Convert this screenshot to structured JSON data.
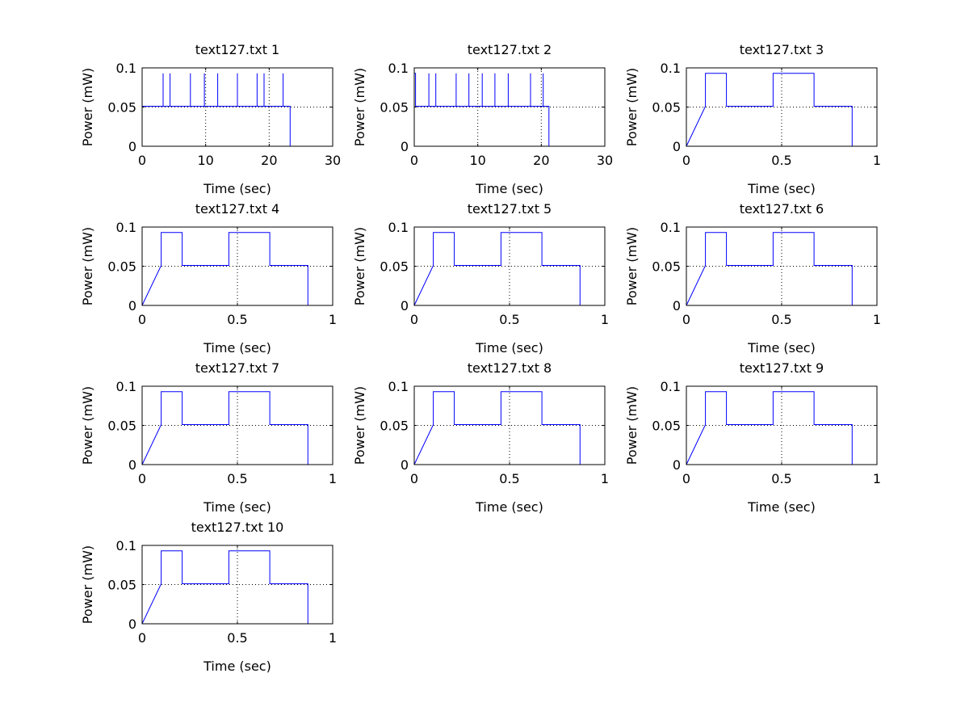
{
  "figure": {
    "background": "#ffffff"
  },
  "style": {
    "line_color": "#0000ff",
    "axis_color": "#000000",
    "grid_color": "#000000"
  },
  "chart_data": [
    {
      "type": "line",
      "title": "text127.txt 1",
      "xlabel": "Time (sec)",
      "ylabel": "Power (mW)",
      "xlim": [
        0,
        30
      ],
      "ylim": [
        0,
        0.1
      ],
      "xticks": [
        0,
        10,
        20,
        30
      ],
      "xticklabels": [
        "0",
        "10",
        "20",
        "30"
      ],
      "yticks": [
        0,
        0.05,
        0.1
      ],
      "yticklabels": [
        "0",
        "0.05",
        "0.1"
      ],
      "grid": true,
      "series": [
        {
          "x": [
            0,
            0,
            0,
            3.3,
            3.3,
            3.3,
            4.4,
            4.4,
            4.4,
            7.6,
            7.6,
            7.6,
            9.8,
            9.8,
            9.8,
            11.9,
            11.9,
            11.9,
            15.0,
            15.0,
            15.0,
            18.1,
            18.1,
            18.1,
            19.2,
            19.2,
            19.2,
            22.2,
            22.2,
            22.2,
            23.3,
            23.3
          ],
          "y": [
            0,
            0.093,
            0.051,
            0.051,
            0.093,
            0.051,
            0.051,
            0.093,
            0.051,
            0.051,
            0.093,
            0.051,
            0.051,
            0.093,
            0.051,
            0.051,
            0.093,
            0.051,
            0.051,
            0.093,
            0.051,
            0.051,
            0.093,
            0.051,
            0.051,
            0.093,
            0.051,
            0.051,
            0.093,
            0.051,
            0.051,
            0
          ]
        }
      ]
    },
    {
      "type": "line",
      "title": "text127.txt 2",
      "xlabel": "Time (sec)",
      "ylabel": "Power (mW)",
      "xlim": [
        0,
        30
      ],
      "ylim": [
        0,
        0.1
      ],
      "xticks": [
        0,
        10,
        20,
        30
      ],
      "xticklabels": [
        "0",
        "10",
        "20",
        "30"
      ],
      "yticks": [
        0,
        0.05,
        0.1
      ],
      "yticklabels": [
        "0",
        "0.05",
        "0.1"
      ],
      "grid": true,
      "series": [
        {
          "x": [
            0,
            0,
            0.2,
            0.2,
            2.3,
            2.3,
            2.3,
            3.4,
            3.4,
            3.4,
            6.6,
            6.6,
            6.6,
            8.6,
            8.6,
            8.6,
            10.7,
            10.7,
            10.7,
            12.7,
            12.7,
            12.7,
            14.8,
            14.8,
            14.8,
            18.3,
            18.3,
            18.3,
            20.3,
            20.3,
            20.3,
            21.2,
            21.2
          ],
          "y": [
            0,
            0.093,
            0.093,
            0.051,
            0.051,
            0.093,
            0.051,
            0.051,
            0.093,
            0.051,
            0.051,
            0.093,
            0.051,
            0.051,
            0.093,
            0.051,
            0.051,
            0.093,
            0.051,
            0.051,
            0.093,
            0.051,
            0.051,
            0.093,
            0.051,
            0.051,
            0.093,
            0.051,
            0.051,
            0.093,
            0.051,
            0.051,
            0
          ]
        }
      ]
    },
    {
      "type": "line",
      "title": "text127.txt 3",
      "xlabel": "Time (sec)",
      "ylabel": "Power (mW)",
      "xlim": [
        0,
        1
      ],
      "ylim": [
        0,
        0.1
      ],
      "xticks": [
        0,
        0.5,
        1
      ],
      "xticklabels": [
        "0",
        "0.5",
        "1"
      ],
      "yticks": [
        0,
        0.05,
        0.1
      ],
      "yticklabels": [
        "0",
        "0.05",
        "0.1"
      ],
      "grid": true,
      "series": [
        {
          "x": [
            0,
            0.1,
            0.1,
            0.21,
            0.21,
            0.455,
            0.455,
            0.67,
            0.67,
            0.87,
            0.87
          ],
          "y": [
            0,
            0.051,
            0.093,
            0.093,
            0.051,
            0.051,
            0.093,
            0.093,
            0.051,
            0.051,
            0
          ]
        }
      ]
    },
    {
      "type": "line",
      "title": "text127.txt 4",
      "xlabel": "Time (sec)",
      "ylabel": "Power (mW)",
      "xlim": [
        0,
        1
      ],
      "ylim": [
        0,
        0.1
      ],
      "xticks": [
        0,
        0.5,
        1
      ],
      "xticklabels": [
        "0",
        "0.5",
        "1"
      ],
      "yticks": [
        0,
        0.05,
        0.1
      ],
      "yticklabels": [
        "0",
        "0.05",
        "0.1"
      ],
      "grid": true,
      "series": [
        {
          "x": [
            0,
            0.1,
            0.1,
            0.21,
            0.21,
            0.455,
            0.455,
            0.67,
            0.67,
            0.87,
            0.87
          ],
          "y": [
            0,
            0.051,
            0.093,
            0.093,
            0.051,
            0.051,
            0.093,
            0.093,
            0.051,
            0.051,
            0
          ]
        }
      ]
    },
    {
      "type": "line",
      "title": "text127.txt 5",
      "xlabel": "Time (sec)",
      "ylabel": "Power (mW)",
      "xlim": [
        0,
        1
      ],
      "ylim": [
        0,
        0.1
      ],
      "xticks": [
        0,
        0.5,
        1
      ],
      "xticklabels": [
        "0",
        "0.5",
        "1"
      ],
      "yticks": [
        0,
        0.05,
        0.1
      ],
      "yticklabels": [
        "0",
        "0.05",
        "0.1"
      ],
      "grid": true,
      "series": [
        {
          "x": [
            0,
            0.1,
            0.1,
            0.21,
            0.21,
            0.455,
            0.455,
            0.67,
            0.67,
            0.87,
            0.87
          ],
          "y": [
            0,
            0.051,
            0.093,
            0.093,
            0.051,
            0.051,
            0.093,
            0.093,
            0.051,
            0.051,
            0
          ]
        }
      ]
    },
    {
      "type": "line",
      "title": "text127.txt 6",
      "xlabel": "Time (sec)",
      "ylabel": "Power (mW)",
      "xlim": [
        0,
        1
      ],
      "ylim": [
        0,
        0.1
      ],
      "xticks": [
        0,
        0.5,
        1
      ],
      "xticklabels": [
        "0",
        "0.5",
        "1"
      ],
      "yticks": [
        0,
        0.05,
        0.1
      ],
      "yticklabels": [
        "0",
        "0.05",
        "0.1"
      ],
      "grid": true,
      "series": [
        {
          "x": [
            0,
            0.1,
            0.1,
            0.21,
            0.21,
            0.455,
            0.455,
            0.67,
            0.67,
            0.87,
            0.87
          ],
          "y": [
            0,
            0.051,
            0.093,
            0.093,
            0.051,
            0.051,
            0.093,
            0.093,
            0.051,
            0.051,
            0
          ]
        }
      ]
    },
    {
      "type": "line",
      "title": "text127.txt 7",
      "xlabel": "Time (sec)",
      "ylabel": "Power (mW)",
      "xlim": [
        0,
        1
      ],
      "ylim": [
        0,
        0.1
      ],
      "xticks": [
        0,
        0.5,
        1
      ],
      "xticklabels": [
        "0",
        "0.5",
        "1"
      ],
      "yticks": [
        0,
        0.05,
        0.1
      ],
      "yticklabels": [
        "0",
        "0.05",
        "0.1"
      ],
      "grid": true,
      "series": [
        {
          "x": [
            0,
            0.1,
            0.1,
            0.21,
            0.21,
            0.455,
            0.455,
            0.67,
            0.67,
            0.87,
            0.87
          ],
          "y": [
            0,
            0.051,
            0.093,
            0.093,
            0.051,
            0.051,
            0.093,
            0.093,
            0.051,
            0.051,
            0
          ]
        }
      ]
    },
    {
      "type": "line",
      "title": "text127.txt 8",
      "xlabel": "Time (sec)",
      "ylabel": "Power (mW)",
      "xlim": [
        0,
        1
      ],
      "ylim": [
        0,
        0.1
      ],
      "xticks": [
        0,
        0.5,
        1
      ],
      "xticklabels": [
        "0",
        "0.5",
        "1"
      ],
      "yticks": [
        0,
        0.05,
        0.1
      ],
      "yticklabels": [
        "0",
        "0.05",
        "0.1"
      ],
      "grid": true,
      "series": [
        {
          "x": [
            0,
            0.1,
            0.1,
            0.21,
            0.21,
            0.455,
            0.455,
            0.67,
            0.67,
            0.87,
            0.87
          ],
          "y": [
            0,
            0.051,
            0.093,
            0.093,
            0.051,
            0.051,
            0.093,
            0.093,
            0.051,
            0.051,
            0
          ]
        }
      ]
    },
    {
      "type": "line",
      "title": "text127.txt 9",
      "xlabel": "Time (sec)",
      "ylabel": "Power (mW)",
      "xlim": [
        0,
        1
      ],
      "ylim": [
        0,
        0.1
      ],
      "xticks": [
        0,
        0.5,
        1
      ],
      "xticklabels": [
        "0",
        "0.5",
        "1"
      ],
      "yticks": [
        0,
        0.05,
        0.1
      ],
      "yticklabels": [
        "0",
        "0.05",
        "0.1"
      ],
      "grid": true,
      "series": [
        {
          "x": [
            0,
            0.1,
            0.1,
            0.21,
            0.21,
            0.455,
            0.455,
            0.67,
            0.67,
            0.87,
            0.87
          ],
          "y": [
            0,
            0.051,
            0.093,
            0.093,
            0.051,
            0.051,
            0.093,
            0.093,
            0.051,
            0.051,
            0
          ]
        }
      ]
    },
    {
      "type": "line",
      "title": "text127.txt 10",
      "xlabel": "Time (sec)",
      "ylabel": "Power (mW)",
      "xlim": [
        0,
        1
      ],
      "ylim": [
        0,
        0.1
      ],
      "xticks": [
        0,
        0.5,
        1
      ],
      "xticklabels": [
        "0",
        "0.5",
        "1"
      ],
      "yticks": [
        0,
        0.05,
        0.1
      ],
      "yticklabels": [
        "0",
        "0.05",
        "0.1"
      ],
      "grid": true,
      "series": [
        {
          "x": [
            0,
            0.1,
            0.1,
            0.21,
            0.21,
            0.455,
            0.455,
            0.67,
            0.67,
            0.87,
            0.87
          ],
          "y": [
            0,
            0.051,
            0.093,
            0.093,
            0.051,
            0.051,
            0.093,
            0.093,
            0.051,
            0.051,
            0
          ]
        }
      ]
    }
  ]
}
